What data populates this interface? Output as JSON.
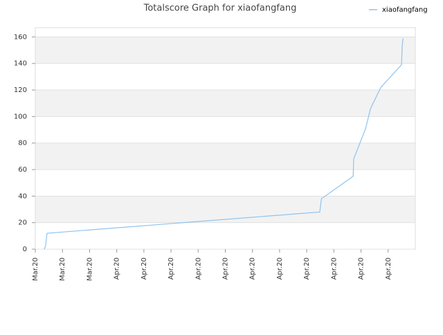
{
  "chart_data": {
    "type": "line",
    "title": "Totalscore Graph for xiaofangfang",
    "series": [
      {
        "name": "xiaofangfang",
        "color": "#8ec2ee",
        "x": [
          0.33,
          0.38,
          0.41,
          0.43,
          10.48,
          10.54,
          11.71,
          11.73,
          12.17,
          12.35,
          12.73,
          13.49,
          13.52,
          13.55
        ],
        "values": [
          0,
          2.6,
          7.8,
          12,
          28,
          38,
          55,
          68,
          91,
          106,
          122,
          139,
          154,
          159
        ]
      }
    ],
    "xlim": [
      0,
      14
    ],
    "xticks": [
      {
        "value": 0,
        "label": "Mar.20"
      },
      {
        "value": 1,
        "label": "Mar.20"
      },
      {
        "value": 2,
        "label": "Mar.20"
      },
      {
        "value": 3,
        "label": "Apr.20"
      },
      {
        "value": 4,
        "label": "Apr.20"
      },
      {
        "value": 5,
        "label": "Apr.20"
      },
      {
        "value": 6,
        "label": "Apr.20"
      },
      {
        "value": 7,
        "label": "Apr.20"
      },
      {
        "value": 8,
        "label": "Apr.20"
      },
      {
        "value": 9,
        "label": "Apr.20"
      },
      {
        "value": 10,
        "label": "Apr.20"
      },
      {
        "value": 11,
        "label": "Apr.20"
      },
      {
        "value": 12,
        "label": "Apr.20"
      },
      {
        "value": 13,
        "label": "Apr.20"
      }
    ],
    "ylim": [
      0,
      167
    ],
    "yticks": [
      0,
      20,
      40,
      60,
      80,
      100,
      120,
      140,
      160
    ],
    "grid": true,
    "legend": "top-right"
  }
}
